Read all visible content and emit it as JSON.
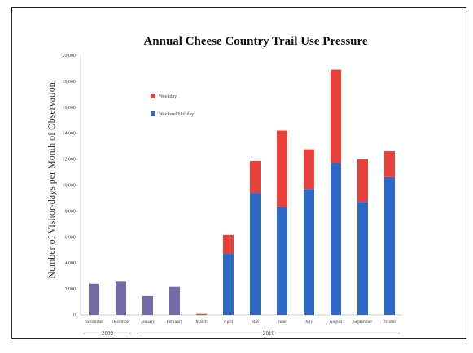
{
  "chart_data": {
    "type": "bar",
    "stacked": true,
    "title": "Annual Cheese Country Trail Use Pressure",
    "ylabel": "Number of Visitor-days per Month of Observation",
    "xlabel": "",
    "ylim": [
      0,
      20000
    ],
    "yticks": [
      0,
      2000,
      4000,
      6000,
      8000,
      10000,
      12000,
      14000,
      16000,
      18000,
      20000
    ],
    "ytick_labels": [
      "0",
      "2,000",
      "4,000",
      "6,000",
      "8,000",
      "10,000",
      "12,000",
      "14,000",
      "16,000",
      "18,000",
      "20,000"
    ],
    "categories": [
      "November",
      "December",
      "January",
      "February",
      "March",
      "April",
      "May",
      "June",
      "July",
      "August",
      "September",
      "October"
    ],
    "groups": [
      {
        "label": "2009",
        "from": 0,
        "to": 1
      },
      {
        "label": "2010",
        "from": 2,
        "to": 11
      }
    ],
    "colors": {
      "weekday": "#e8413a",
      "weekend": "#2f69c8",
      "winter": "#7569a8"
    },
    "legend_position": "upper-left",
    "series": [
      {
        "name": "Weekday",
        "color": "#e8413a",
        "values": [
          0,
          0,
          0,
          0,
          80,
          1450,
          2450,
          5900,
          3050,
          7200,
          3300,
          2000
        ]
      },
      {
        "name": "Weekend/Holiday",
        "color": "#2f69c8",
        "values": [
          0,
          0,
          0,
          0,
          0,
          4700,
          9400,
          8300,
          9700,
          11700,
          8700,
          10600
        ]
      },
      {
        "name": "",
        "color": "#7569a8",
        "values": [
          2400,
          2550,
          1450,
          2150,
          0,
          0,
          0,
          0,
          0,
          0,
          0,
          0
        ]
      }
    ],
    "legend": [
      "Weekday",
      "Weekend/Holiday"
    ],
    "grid": false
  }
}
